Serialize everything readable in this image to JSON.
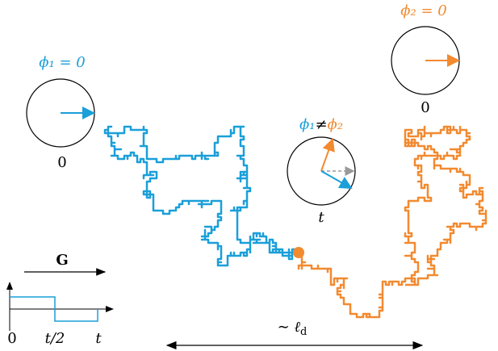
{
  "labels": {
    "phi1": "ϕ₁ = 0",
    "time1": "0",
    "phi2": "ϕ₂ = 0",
    "time2": "0",
    "phase_diff": {
      "left": "ϕ₁",
      "op": "≠",
      "right": "ϕ₂"
    },
    "time3": "t",
    "gradient": "G",
    "gradient_axis": {
      "start": "0",
      "middle": "t/2",
      "end": "t"
    },
    "length": {
      "symbol": "∼ ℓ",
      "subscript": "d"
    }
  }
}
